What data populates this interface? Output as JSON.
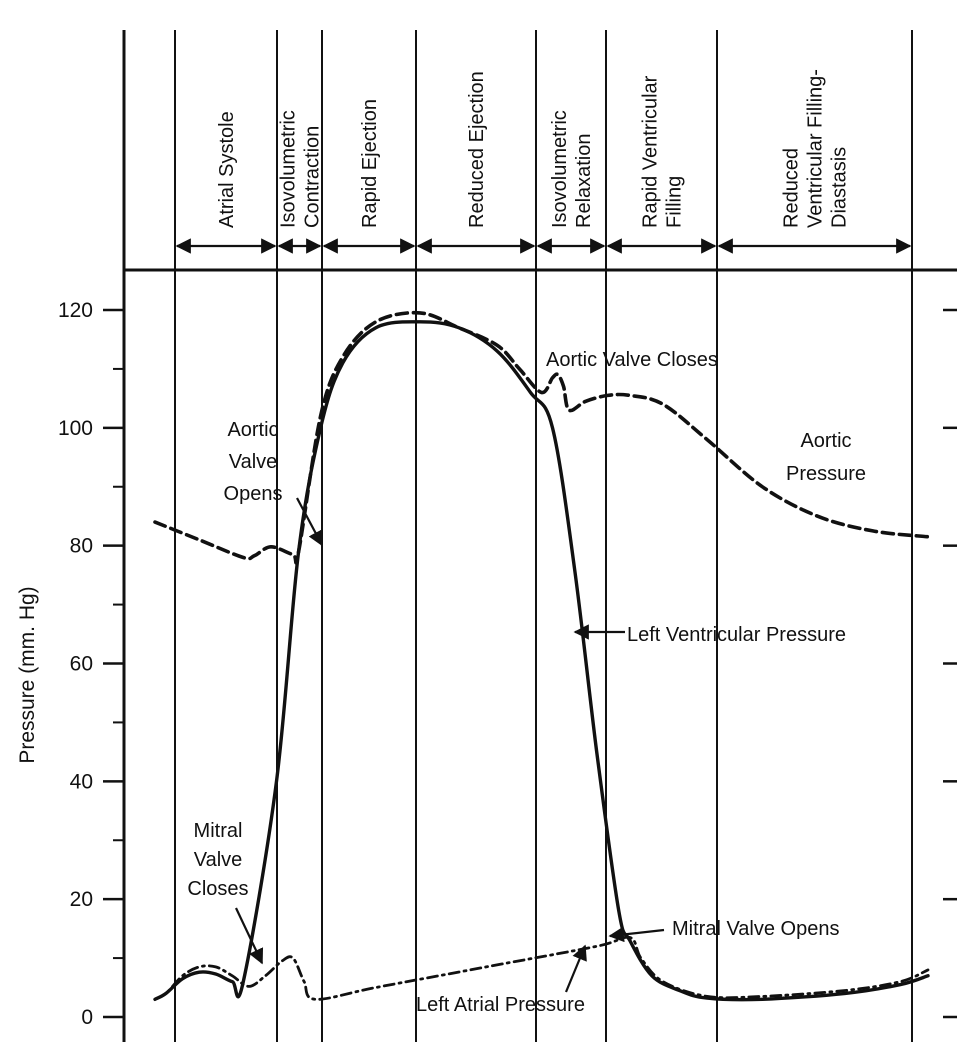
{
  "chart_data": {
    "type": "line",
    "title": "",
    "xlabel": "",
    "ylabel": "Pressure (mm. Hg)",
    "ylim": [
      0,
      120
    ],
    "y_ticks": [
      0,
      20,
      40,
      60,
      80,
      100,
      120
    ],
    "grid": false,
    "phases": [
      {
        "lines": [
          "Atrial Systole"
        ]
      },
      {
        "lines": [
          "Isovolumetric",
          "Contraction"
        ]
      },
      {
        "lines": [
          "Rapid Ejection"
        ]
      },
      {
        "lines": [
          "Reduced Ejection"
        ]
      },
      {
        "lines": [
          "Isovolumetric",
          "Relaxation"
        ]
      },
      {
        "lines": [
          "Rapid Ventricular",
          "Filling"
        ]
      },
      {
        "lines": [
          "Reduced",
          "Ventricular Filling-",
          "Diastasis"
        ]
      }
    ],
    "series": [
      {
        "name": "Left Ventricular Pressure",
        "style": "solid",
        "points": [
          [
            0,
            3
          ],
          [
            2,
            4
          ],
          [
            5,
            6.5
          ],
          [
            8,
            7.6
          ],
          [
            11,
            7.3
          ],
          [
            14,
            6
          ],
          [
            16,
            6
          ],
          [
            22,
            40
          ],
          [
            26,
            79
          ],
          [
            30,
            100
          ],
          [
            34,
            111
          ],
          [
            40,
            117
          ],
          [
            48,
            118
          ],
          [
            55,
            117
          ],
          [
            62,
            113
          ],
          [
            68,
            106
          ],
          [
            72,
            100
          ],
          [
            76,
            76
          ],
          [
            80,
            45
          ],
          [
            84,
            18
          ],
          [
            86,
            13
          ],
          [
            90,
            7
          ],
          [
            95,
            4.5
          ],
          [
            100,
            3.2
          ],
          [
            110,
            3
          ],
          [
            125,
            4
          ],
          [
            135,
            5.5
          ],
          [
            140,
            7
          ]
        ]
      },
      {
        "name": "Aortic Pressure",
        "style": "dashed",
        "points": [
          [
            0,
            84
          ],
          [
            8,
            81
          ],
          [
            16,
            78
          ],
          [
            18,
            78.3
          ],
          [
            21,
            79.8
          ],
          [
            25,
            78.5
          ],
          [
            26,
            79
          ],
          [
            30,
            102
          ],
          [
            34,
            112
          ],
          [
            40,
            118
          ],
          [
            48,
            119.5
          ],
          [
            55,
            117
          ],
          [
            62,
            114
          ],
          [
            66,
            110
          ],
          [
            70,
            106
          ],
          [
            72,
            108.5
          ],
          [
            73,
            109
          ],
          [
            74,
            107
          ],
          [
            75,
            103
          ],
          [
            78,
            104.5
          ],
          [
            82,
            105.5
          ],
          [
            86,
            105.5
          ],
          [
            92,
            104
          ],
          [
            100,
            98
          ],
          [
            110,
            90
          ],
          [
            120,
            85
          ],
          [
            130,
            82.5
          ],
          [
            140,
            81.5
          ]
        ]
      },
      {
        "name": "Left Atrial Pressure",
        "style": "dash-dot",
        "points": [
          [
            0,
            3
          ],
          [
            2,
            4
          ],
          [
            5,
            7
          ],
          [
            8,
            8.5
          ],
          [
            11,
            8.5
          ],
          [
            14,
            7
          ],
          [
            17,
            5.2
          ],
          [
            20,
            7
          ],
          [
            23,
            9.5
          ],
          [
            25,
            10
          ],
          [
            27,
            6
          ],
          [
            29,
            3
          ],
          [
            40,
            5
          ],
          [
            60,
            8.5
          ],
          [
            80,
            12
          ],
          [
            86,
            13.5
          ],
          [
            88,
            10
          ],
          [
            92,
            6
          ],
          [
            100,
            3.5
          ],
          [
            110,
            3.5
          ],
          [
            125,
            4.5
          ],
          [
            135,
            6
          ],
          [
            140,
            8
          ]
        ]
      }
    ],
    "annotations": [
      {
        "lines": [
          "Aortic Valve Closes"
        ]
      },
      {
        "lines": [
          "Aortic",
          "Valve",
          "Opens"
        ]
      },
      {
        "lines": [
          "Aortic",
          "Pressure"
        ]
      },
      {
        "lines": [
          "Left Ventricular Pressure"
        ]
      },
      {
        "lines": [
          "Mitral",
          "Valve",
          "Closes"
        ]
      },
      {
        "lines": [
          "Mitral Valve Opens"
        ]
      },
      {
        "lines": [
          "Left Atrial Pressure"
        ]
      }
    ]
  }
}
